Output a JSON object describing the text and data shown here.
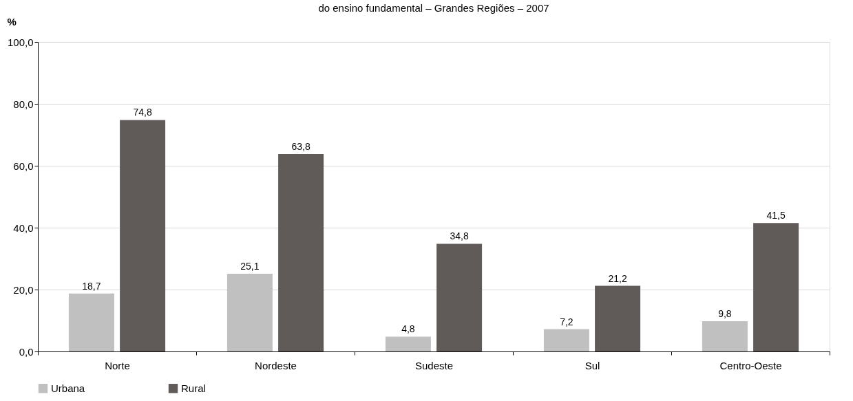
{
  "chart_data": {
    "type": "bar",
    "title": "do ensino fundamental – Grandes Regiões – 2007",
    "ylabel": "%",
    "categories": [
      "Norte",
      "Nordeste",
      "Sudeste",
      "Sul",
      "Centro-Oeste"
    ],
    "series": [
      {
        "name": "Urbana",
        "color": "#c0c0c0",
        "values": [
          18.7,
          25.1,
          4.8,
          7.2,
          9.8
        ],
        "value_labels": [
          "18,7",
          "25,1",
          "4,8",
          "7,2",
          "9,8"
        ]
      },
      {
        "name": "Rural",
        "color": "#605a58",
        "values": [
          74.8,
          63.8,
          34.8,
          21.2,
          41.5
        ],
        "value_labels": [
          "74,8",
          "63,8",
          "34,8",
          "21,2",
          "41,5"
        ]
      }
    ],
    "ylim": [
      0,
      100
    ],
    "yticks": [
      {
        "value": 0,
        "label": "0,0"
      },
      {
        "value": 20,
        "label": "20,0"
      },
      {
        "value": 40,
        "label": "40,0"
      },
      {
        "value": 60,
        "label": "60,0"
      },
      {
        "value": 80,
        "label": "80,0"
      },
      {
        "value": 100,
        "label": "100,0"
      }
    ],
    "grid": "y",
    "legend": "bottom"
  }
}
